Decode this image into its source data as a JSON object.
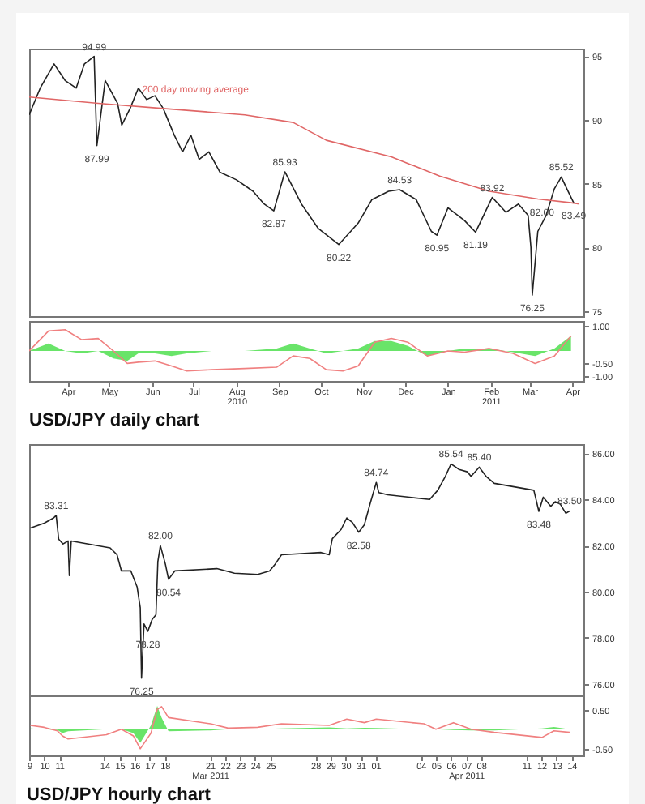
{
  "chart_data": [
    {
      "type": "line",
      "xlim": [
        "2010-03-18",
        "2011-04-23"
      ],
      "ylim": [
        74.6,
        95.6
      ],
      "yticks": [
        75,
        80,
        85,
        90,
        95
      ],
      "tick_labels": "y",
      "series": [
        {
          "color": "#222222",
          "x": [
            "2010-03-18",
            "2010-03-26",
            "2010-04-05",
            "2010-04-13",
            "2010-04-21",
            "2010-04-27",
            "2010-05-04",
            "2010-05-06",
            "2010-05-12",
            "2010-05-21",
            "2010-05-24",
            "2010-05-30",
            "2010-06-05",
            "2010-06-11",
            "2010-06-17",
            "2010-06-23",
            "2010-07-01",
            "2010-07-07",
            "2010-07-13",
            "2010-07-19",
            "2010-07-26",
            "2010-08-03",
            "2010-08-15",
            "2010-08-27",
            "2010-09-04",
            "2010-09-11",
            "2010-09-19",
            "2010-10-01",
            "2010-10-13",
            "2010-10-28",
            "2010-11-11",
            "2010-11-21",
            "2010-12-03",
            "2010-12-11",
            "2010-12-23",
            "2011-01-03",
            "2011-01-07",
            "2011-01-15",
            "2011-01-27",
            "2011-02-04",
            "2011-02-16",
            "2011-02-26",
            "2011-03-07",
            "2011-03-14",
            "2011-03-16",
            "2011-03-17",
            "2011-03-21",
            "2011-03-27",
            "2011-04-02",
            "2011-04-07",
            "2011-04-11",
            "2011-04-16"
          ],
          "values": [
            90.4,
            92.5,
            94.4,
            93.1,
            92.5,
            94.4,
            94.99,
            87.99,
            93.1,
            91.3,
            89.6,
            90.9,
            92.5,
            91.6,
            91.9,
            90.9,
            88.8,
            87.5,
            88.8,
            86.9,
            87.5,
            85.9,
            85.3,
            84.4,
            83.4,
            82.87,
            85.93,
            83.4,
            81.5,
            80.22,
            81.9,
            83.75,
            84.4,
            84.53,
            83.75,
            81.25,
            80.95,
            83.1,
            82.1,
            81.19,
            83.92,
            82.75,
            83.4,
            82.5,
            80.0,
            76.25,
            81.25,
            82.5,
            84.6,
            85.52,
            84.6,
            83.49
          ]
        },
        {
          "color": "#e06666",
          "x": [
            "2010-03-18",
            "2010-05-07",
            "2010-06-23",
            "2010-08-21",
            "2010-09-25",
            "2010-10-19",
            "2010-12-05",
            "2011-01-09",
            "2011-02-14",
            "2011-03-21",
            "2011-04-14",
            "2011-04-20"
          ],
          "values": [
            91.8,
            91.3,
            90.9,
            90.4,
            89.8,
            88.4,
            87.1,
            85.6,
            84.4,
            83.8,
            83.5,
            83.4
          ]
        }
      ],
      "annotations": [
        {
          "text": "94.99",
          "x": "2010-05-04",
          "y": 94.99
        },
        {
          "text": "87.99",
          "x": "2010-05-06",
          "y": 87.99
        },
        "200 day moving average",
        {
          "text": "85.93",
          "x": "2010-09-19",
          "y": 85.93
        },
        {
          "text": "82.87",
          "x": "2010-09-11",
          "y": 82.87
        },
        {
          "text": "80.22",
          "x": "2010-10-28",
          "y": 80.22
        },
        {
          "text": "84.53",
          "x": "2010-12-11",
          "y": 84.53
        },
        {
          "text": "80.95",
          "x": "2011-01-07",
          "y": 80.95
        },
        {
          "text": "81.19",
          "x": "2011-02-04",
          "y": 81.19
        },
        {
          "text": "83.92",
          "x": "2011-02-16",
          "y": 83.92
        },
        {
          "text": "82.00",
          "x": "2011-03-24",
          "y": 82.0
        },
        {
          "text": "76.25",
          "x": "2011-03-17",
          "y": 76.25
        },
        {
          "text": "85.52",
          "x": "2011-04-07",
          "y": 85.52
        },
        {
          "text": "83.49",
          "x": "2011-04-16",
          "y": 83.49
        }
      ]
    },
    {
      "type": "line",
      "title": "USD/JPY daily chart",
      "xlim": [
        "2010-03-18",
        "2011-04-23"
      ],
      "xticks": [
        {
          "value": "2010-04-15",
          "label": "Apr"
        },
        {
          "value": "2010-05-15",
          "label": "May"
        },
        {
          "value": "2010-06-15",
          "label": "Jun"
        },
        {
          "value": "2010-07-15",
          "label": "Jul"
        },
        {
          "value": "2010-08-15",
          "label": "Aug\n2010"
        },
        {
          "value": "2010-09-15",
          "label": "Sep"
        },
        {
          "value": "2010-10-15",
          "label": "Oct"
        },
        {
          "value": "2010-11-15",
          "label": "Nov"
        },
        {
          "value": "2010-12-15",
          "label": "Dec"
        },
        {
          "value": "2011-01-15",
          "label": "Jan"
        },
        {
          "value": "2011-02-15",
          "label": "Feb\n2011"
        },
        {
          "value": "2011-03-15",
          "label": "Mar"
        },
        {
          "value": "2011-04-15",
          "label": "Apr"
        }
      ],
      "ylim": [
        -1.2,
        1.2
      ],
      "yticks": [
        {
          "value": 1,
          "label": "1.00"
        },
        {
          "value": -0.5,
          "label": "-0.50"
        },
        {
          "value": -1,
          "label": "-1.00"
        }
      ],
      "x": [
        "2010-03-18",
        "2010-04-01",
        "2010-04-13",
        "2010-04-25",
        "2010-05-07",
        "2010-05-18",
        "2010-05-28",
        "2010-06-05",
        "2010-06-17",
        "2010-06-29",
        "2010-07-10",
        "2010-07-28",
        "2010-08-21",
        "2010-09-13",
        "2010-09-25",
        "2010-10-07",
        "2010-10-19",
        "2010-10-31",
        "2010-11-11",
        "2010-11-23",
        "2010-12-05",
        "2010-12-17",
        "2010-12-31",
        "2011-01-15",
        "2011-01-27",
        "2011-02-14",
        "2011-03-03",
        "2011-03-19",
        "2011-04-02",
        "2011-04-14"
      ],
      "series": [
        {
          "type": "area",
          "color": "#44dd44",
          "values": [
            0,
            0.3,
            0,
            -0.1,
            0,
            -0.3,
            -0.4,
            -0.1,
            -0.1,
            -0.2,
            -0.1,
            0,
            0,
            0.1,
            0.3,
            0.1,
            -0.1,
            0,
            0.1,
            0.4,
            0.4,
            0.2,
            -0.2,
            0,
            0.1,
            0.1,
            -0.05,
            -0.2,
            0.1,
            0.6
          ]
        },
        {
          "color": "#f08080",
          "values": [
            0,
            0.8,
            0.85,
            0.45,
            0.5,
            0,
            -0.5,
            -0.45,
            -0.4,
            -0.6,
            -0.8,
            -0.75,
            -0.7,
            -0.65,
            -0.2,
            -0.3,
            -0.75,
            -0.8,
            -0.6,
            0.35,
            0.5,
            0.35,
            -0.2,
            0,
            -0.05,
            0.1,
            -0.1,
            -0.5,
            -0.2,
            0.6
          ]
        }
      ]
    },
    {
      "type": "line",
      "xlim": [
        "2011-03-09",
        "2011-04-14T19:00"
      ],
      "ylim": [
        75.5,
        86.4
      ],
      "yticks": [
        {
          "value": 76,
          "label": "76.00"
        },
        {
          "value": 78,
          "label": "78.00"
        },
        {
          "value": 80,
          "label": "80.00"
        },
        {
          "value": 82,
          "label": "82.00"
        },
        {
          "value": 84,
          "label": "84.00"
        },
        {
          "value": 86,
          "label": "86.00"
        }
      ],
      "tick_labels": "y",
      "x": [
        "2011-03-09T02:00",
        "2011-03-10T00:00",
        "2011-03-10T15:00",
        "2011-03-10T19:00",
        "2011-03-10T23:00",
        "2011-03-11T06:00",
        "2011-03-11T14:00",
        "2011-03-11T16:00",
        "2011-03-11T19:00",
        "2011-03-14T09:00",
        "2011-03-14T20:00",
        "2011-03-15T03:00",
        "2011-03-15T18:00",
        "2011-03-16T04:00",
        "2011-03-16T09:00",
        "2011-03-16T11:00",
        "2011-03-16T15:00",
        "2011-03-16T21:00",
        "2011-03-17T04:00",
        "2011-03-17T10:00",
        "2011-03-17T13:00",
        "2011-03-17T17:00",
        "2011-03-18T01:00",
        "2011-03-18T06:00",
        "2011-03-18T16:00",
        "2011-03-21T11:00",
        "2011-03-22T15:00",
        "2011-03-24T04:00",
        "2011-03-24T23:00",
        "2011-03-25T08:00",
        "2011-03-25T18:00",
        "2011-03-28T09:00",
        "2011-03-28T22:00",
        "2011-03-29T03:00",
        "2011-03-29T17:00",
        "2011-03-30T02:00",
        "2011-03-30T11:00",
        "2011-03-30T21:00",
        "2011-03-31T06:00",
        "2011-03-31T15:00",
        "2011-04-01T01:00",
        "2011-04-01T05:00",
        "2011-04-01T19:00",
        "2011-04-04T14:00",
        "2011-04-05T03:00",
        "2011-04-05T15:00",
        "2011-04-06T00:00",
        "2011-04-06T13:00",
        "2011-04-07T02:00",
        "2011-04-07T08:00",
        "2011-04-07T21:00",
        "2011-04-08T08:00",
        "2011-04-08T21:00",
        "2011-04-11T12:00",
        "2011-04-11T20:00",
        "2011-04-12T03:00",
        "2011-04-12T15:00",
        "2011-04-12T22:00",
        "2011-04-13T06:00",
        "2011-04-13T15:00",
        "2011-04-13T21:00"
      ],
      "series": [
        {
          "color": "#222222",
          "values": [
            82.76,
            82.97,
            83.2,
            83.31,
            82.28,
            82.07,
            82.2,
            80.7,
            82.2,
            81.9,
            81.6,
            80.9,
            80.9,
            80.2,
            79.3,
            76.25,
            78.6,
            78.28,
            78.8,
            79.0,
            81.3,
            82.0,
            81.2,
            80.54,
            80.9,
            81.0,
            80.8,
            80.75,
            80.9,
            81.2,
            81.6,
            81.7,
            81.6,
            82.3,
            82.7,
            83.2,
            83.0,
            82.58,
            82.9,
            83.8,
            84.74,
            84.3,
            84.2,
            84.0,
            84.4,
            85.0,
            85.54,
            85.3,
            85.2,
            85.0,
            85.4,
            85.0,
            84.7,
            84.4,
            83.48,
            84.1,
            83.7,
            83.9,
            83.8,
            83.4,
            83.5
          ]
        }
      ],
      "annotations": [
        {
          "text": "83.31",
          "x": "2011-03-10T19:00",
          "y": 83.31
        },
        {
          "text": "82.00",
          "x": "2011-03-17T17:00",
          "y": 82.0
        },
        {
          "text": "80.54",
          "x": "2011-03-18T06:00",
          "y": 80.54
        },
        {
          "text": "78.28",
          "x": "2011-03-16T21:00",
          "y": 78.28
        },
        {
          "text": "76.25",
          "x": "2011-03-16T11:00",
          "y": 76.25
        },
        {
          "text": "82.58",
          "x": "2011-03-30T21:00",
          "y": 82.58
        },
        {
          "text": "84.74",
          "x": "2011-04-01T01:00",
          "y": 84.74
        },
        {
          "text": "85.54",
          "x": "2011-04-06T00:00",
          "y": 85.54
        },
        {
          "text": "85.40",
          "x": "2011-04-07T21:00",
          "y": 85.4
        },
        {
          "text": "83.48",
          "x": "2011-04-11T20:00",
          "y": 83.48
        },
        {
          "text": "83.50",
          "x": "2011-04-13T21:00",
          "y": 83.5
        }
      ]
    },
    {
      "type": "line",
      "title": "USD/JPY hourly chart",
      "xlim": [
        "2011-03-09",
        "2011-04-14T19:00"
      ],
      "xticks": [
        {
          "value": "2011-03-09",
          "label": "9"
        },
        {
          "value": "2011-03-10",
          "label": "10"
        },
        {
          "value": "2011-03-11",
          "label": "11"
        },
        {
          "value": "2011-03-14",
          "label": "14"
        },
        {
          "value": "2011-03-15",
          "label": "15"
        },
        {
          "value": "2011-03-16",
          "label": "16"
        },
        {
          "value": "2011-03-17",
          "label": "17"
        },
        {
          "value": "2011-03-18",
          "label": "18"
        },
        {
          "value": "2011-03-21",
          "label": "21\nMar 2011"
        },
        {
          "value": "2011-03-22",
          "label": "22"
        },
        {
          "value": "2011-03-23",
          "label": "23"
        },
        {
          "value": "2011-03-24",
          "label": "24"
        },
        {
          "value": "2011-03-25",
          "label": "25"
        },
        {
          "value": "2011-03-28",
          "label": "28"
        },
        {
          "value": "2011-03-29",
          "label": "29"
        },
        {
          "value": "2011-03-30",
          "label": "30"
        },
        {
          "value": "2011-03-31",
          "label": "31"
        },
        {
          "value": "2011-04-01",
          "label": "01"
        },
        {
          "value": "2011-04-04",
          "label": "04"
        },
        {
          "value": "2011-04-05",
          "label": "05"
        },
        {
          "value": "2011-04-06",
          "label": "06"
        },
        {
          "value": "2011-04-07",
          "label": "07\nApr 2011"
        },
        {
          "value": "2011-04-08",
          "label": "08"
        },
        {
          "value": "2011-04-11",
          "label": "11"
        },
        {
          "value": "2011-04-12",
          "label": "12"
        },
        {
          "value": "2011-04-13",
          "label": "13"
        },
        {
          "value": "2011-04-14",
          "label": "14"
        }
      ],
      "ylim": [
        -0.67,
        0.87
      ],
      "yticks": [
        {
          "value": 0.5,
          "label": "0.50"
        },
        {
          "value": -0.5,
          "label": "-0.50"
        }
      ],
      "x": [
        "2011-03-09T02:00",
        "2011-03-10T00:00",
        "2011-03-10T21:00",
        "2011-03-11T05:00",
        "2011-03-11T14:00",
        "2011-03-14T03:00",
        "2011-03-15T03:00",
        "2011-03-15T22:00",
        "2011-03-16T09:00",
        "2011-03-17T02:00",
        "2011-03-17T12:00",
        "2011-03-17T19:00",
        "2011-03-18T06:00",
        "2011-03-21T01:00",
        "2011-03-22T05:00",
        "2011-03-24T04:00",
        "2011-03-25T18:00",
        "2011-03-28T22:00",
        "2011-03-30T02:00",
        "2011-03-31T06:00",
        "2011-04-01T01:00",
        "2011-04-04T05:00",
        "2011-04-05T00:00",
        "2011-04-06T04:00",
        "2011-04-07T08:00",
        "2011-04-08T21:00",
        "2011-04-12T01:00",
        "2011-04-12T20:00",
        "2011-04-13T21:00"
      ],
      "series": [
        {
          "type": "area",
          "color": "#44dd44",
          "values": [
            0.02,
            0,
            -0.02,
            -0.1,
            -0.05,
            0,
            0,
            -0.1,
            -0.35,
            0.1,
            0.6,
            0.3,
            -0.05,
            -0.03,
            0,
            0,
            0.02,
            0.05,
            0.02,
            0.04,
            0.03,
            0,
            0,
            -0.02,
            -0.03,
            -0.03,
            0.02,
            0.06,
            0
          ]
        },
        {
          "color": "#f08080",
          "values": [
            0.1,
            0.05,
            -0.04,
            -0.17,
            -0.25,
            -0.14,
            0,
            -0.17,
            -0.5,
            -0.1,
            0.51,
            0.58,
            0.3,
            0.14,
            0.03,
            0.05,
            0.14,
            0.1,
            0.26,
            0.17,
            0.26,
            0.14,
            0,
            0.17,
            0,
            -0.08,
            -0.21,
            -0.04,
            -0.08
          ]
        }
      ]
    }
  ]
}
